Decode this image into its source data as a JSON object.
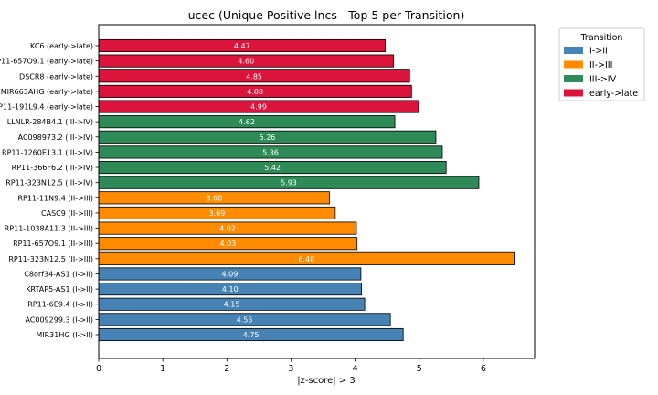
{
  "chart_data": {
    "type": "bar",
    "orientation": "horizontal",
    "title": "ucec (Unique Positive lncs - Top 5 per Transition)",
    "xlabel": "|z-score| > 3",
    "ylabel": "",
    "xlim": [
      0,
      6.8
    ],
    "xticks": [
      "0",
      "1",
      "2",
      "3",
      "4",
      "5",
      "6"
    ],
    "grid": false,
    "legend": {
      "title": "Transition",
      "placement": "outside-top-right",
      "entries": [
        {
          "label": "I->II",
          "color": "#4682b4"
        },
        {
          "label": "II->III",
          "color": "#ff8c00"
        },
        {
          "label": "III->IV",
          "color": "#2e8b57"
        },
        {
          "label": "early->late",
          "color": "#dc143c"
        }
      ]
    },
    "bars": [
      {
        "label": "KC6 (early->late)",
        "value": 4.47,
        "value_label": "4.47",
        "group": "early->late",
        "color": "#dc143c"
      },
      {
        "label": "RP11-657O9.1 (early->late)",
        "value": 4.6,
        "value_label": "4.60",
        "group": "early->late",
        "color": "#dc143c"
      },
      {
        "label": "DSCR8 (early->late)",
        "value": 4.85,
        "value_label": "4.85",
        "group": "early->late",
        "color": "#dc143c"
      },
      {
        "label": "MIR663AHG (early->late)",
        "value": 4.88,
        "value_label": "4.88",
        "group": "early->late",
        "color": "#dc143c"
      },
      {
        "label": "RP11-191L9.4 (early->late)",
        "value": 4.99,
        "value_label": "4.99",
        "group": "early->late",
        "color": "#dc143c"
      },
      {
        "label": "LLNLR-284B4.1 (III->IV)",
        "value": 4.62,
        "value_label": "4.62",
        "group": "III->IV",
        "color": "#2e8b57"
      },
      {
        "label": "AC098973.2 (III->IV)",
        "value": 5.26,
        "value_label": "5.26",
        "group": "III->IV",
        "color": "#2e8b57"
      },
      {
        "label": "RP11-1260E13.1 (III->IV)",
        "value": 5.36,
        "value_label": "5.36",
        "group": "III->IV",
        "color": "#2e8b57"
      },
      {
        "label": "RP11-366F6.2 (III->IV)",
        "value": 5.42,
        "value_label": "5.42",
        "group": "III->IV",
        "color": "#2e8b57"
      },
      {
        "label": "RP11-323N12.5 (III->IV)",
        "value": 5.93,
        "value_label": "5.93",
        "group": "III->IV",
        "color": "#2e8b57"
      },
      {
        "label": "RP11-11N9.4 (II->III)",
        "value": 3.6,
        "value_label": "3.60",
        "group": "II->III",
        "color": "#ff8c00"
      },
      {
        "label": "CASC9 (II->III)",
        "value": 3.69,
        "value_label": "3.69",
        "group": "II->III",
        "color": "#ff8c00"
      },
      {
        "label": "RP11-1038A11.3 (II->III)",
        "value": 4.02,
        "value_label": "4.02",
        "group": "II->III",
        "color": "#ff8c00"
      },
      {
        "label": "RP11-657O9.1 (II->III)",
        "value": 4.03,
        "value_label": "4.03",
        "group": "II->III",
        "color": "#ff8c00"
      },
      {
        "label": "RP11-323N12.5 (II->III)",
        "value": 6.48,
        "value_label": "6.48",
        "group": "II->III",
        "color": "#ff8c00"
      },
      {
        "label": "C8orf34-AS1 (I->II)",
        "value": 4.09,
        "value_label": "4.09",
        "group": "I->II",
        "color": "#4682b4"
      },
      {
        "label": "KRTAP5-AS1 (I->II)",
        "value": 4.1,
        "value_label": "4.10",
        "group": "I->II",
        "color": "#4682b4"
      },
      {
        "label": "RP11-6E9.4 (I->II)",
        "value": 4.15,
        "value_label": "4.15",
        "group": "I->II",
        "color": "#4682b4"
      },
      {
        "label": "AC009299.3 (I->II)",
        "value": 4.55,
        "value_label": "4.55",
        "group": "I->II",
        "color": "#4682b4"
      },
      {
        "label": "MIR31HG (I->II)",
        "value": 4.75,
        "value_label": "4.75",
        "group": "I->II",
        "color": "#4682b4"
      }
    ]
  }
}
